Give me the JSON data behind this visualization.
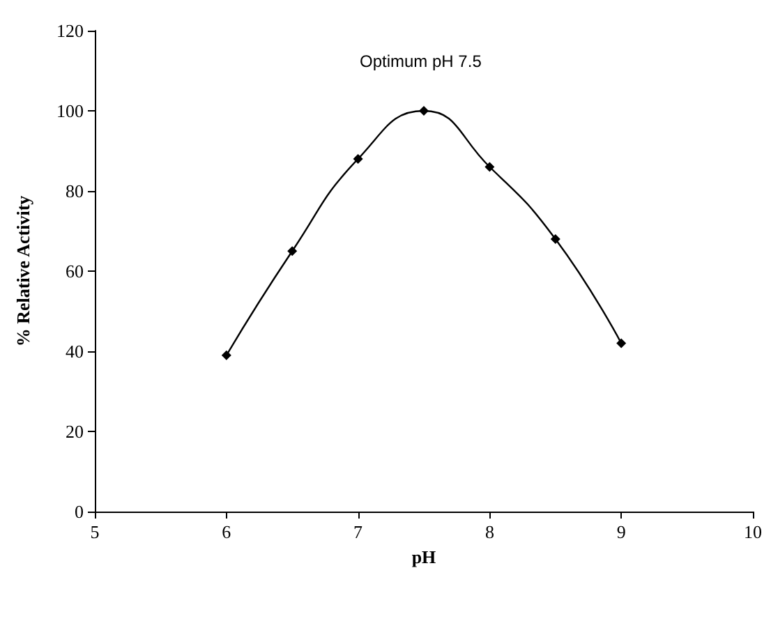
{
  "chart_data": {
    "type": "line",
    "xlabel": "pH",
    "ylabel": "% Relative Activity",
    "annotations": [
      "Optimum pH 7.5"
    ],
    "x": [
      6,
      6.5,
      7,
      7.5,
      8,
      8.5,
      9
    ],
    "series": [
      {
        "color": "#000000",
        "values": [
          39,
          65,
          88,
          100,
          86,
          68,
          42
        ]
      }
    ],
    "xlim": [
      5,
      10
    ],
    "xticks": [
      5,
      6,
      7,
      8,
      9,
      10
    ],
    "ylim": [
      0,
      120
    ],
    "yticks": [
      0,
      20,
      40,
      60,
      80,
      100,
      120
    ],
    "grid": false,
    "marker": "diamond",
    "line_style": "solid"
  }
}
